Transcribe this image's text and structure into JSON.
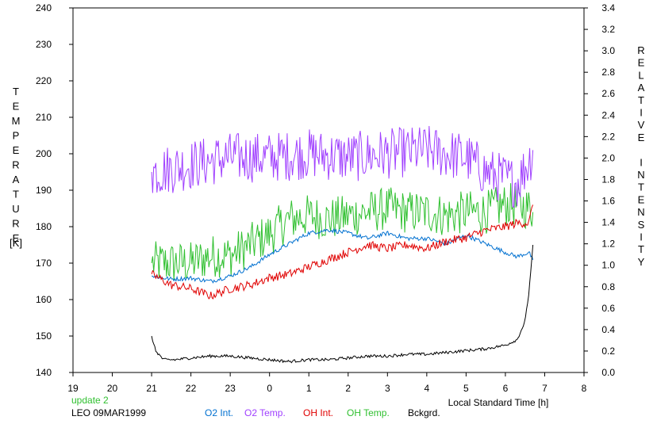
{
  "chart_data": {
    "type": "line",
    "xlabel": "Local Standard Time [h]",
    "ylabel_left": "TEMPERATURE",
    "ylabel_left_unit": "[K]",
    "ylabel_right": "RELATIVE INTENSITY",
    "x_ticks": [
      "19",
      "20",
      "21",
      "22",
      "23",
      "0",
      "1",
      "2",
      "3",
      "4",
      "5",
      "6",
      "7",
      "8"
    ],
    "xlim": [
      19,
      32
    ],
    "ylim_left": [
      140,
      240
    ],
    "ylim_right": [
      0,
      3.4
    ],
    "y_left_ticks": [
      240,
      230,
      220,
      210,
      200,
      190,
      180,
      170,
      160,
      150,
      140
    ],
    "y_right_ticks": [
      "3.4",
      "3.2",
      "3.0",
      "2.8",
      "2.6",
      "2.4",
      "2.2",
      "2.0",
      "1.8",
      "1.6",
      "1.4",
      "1.2",
      "1.0",
      "0.8",
      "0.6",
      "0.4",
      "0.2",
      "0.0"
    ],
    "grid": false,
    "series": [
      {
        "name": "O2 Int.",
        "color": "#0070d0",
        "axis": "right",
        "noise": 0.02,
        "x": [
          21.0,
          21.5,
          22.0,
          22.5,
          23.0,
          23.5,
          24.0,
          24.5,
          25.0,
          25.5,
          26.0,
          26.5,
          27.0,
          27.5,
          28.0,
          28.5,
          29.0,
          29.5,
          30.0,
          30.3,
          30.6,
          30.7
        ],
        "y": [
          0.9,
          0.87,
          0.88,
          0.85,
          0.9,
          0.98,
          1.1,
          1.2,
          1.3,
          1.33,
          1.3,
          1.25,
          1.3,
          1.25,
          1.25,
          1.2,
          1.28,
          1.2,
          1.12,
          1.08,
          1.12,
          1.05
        ]
      },
      {
        "name": "O2 Temp.",
        "color": "#a040ff",
        "axis": "left",
        "noise": 7,
        "x": [
          21.0,
          22.0,
          23.0,
          24.0,
          25.0,
          26.0,
          27.0,
          28.0,
          29.0,
          29.5,
          30.0,
          30.3,
          30.6,
          30.7
        ],
        "y": [
          195,
          197,
          199,
          199,
          200,
          199,
          200,
          201,
          199,
          195,
          193,
          192,
          198,
          201
        ]
      },
      {
        "name": "OH Int.",
        "color": "#e00000",
        "axis": "left",
        "noise": 1.2,
        "x": [
          21.0,
          21.5,
          22.0,
          22.5,
          23.0,
          23.5,
          24.0,
          24.5,
          25.0,
          25.5,
          26.0,
          26.5,
          27.0,
          27.5,
          28.0,
          28.5,
          29.0,
          29.5,
          30.0,
          30.3,
          30.6,
          30.7
        ],
        "y": [
          167,
          164,
          163,
          161,
          163,
          164,
          166,
          167,
          169,
          171,
          173,
          175,
          174,
          175,
          174,
          176,
          177,
          179,
          180,
          181,
          181,
          186
        ]
      },
      {
        "name": "OH Temp.",
        "color": "#30c030",
        "axis": "left",
        "noise": 6,
        "x": [
          21.0,
          21.5,
          22.0,
          22.5,
          23.0,
          23.5,
          24.0,
          24.5,
          25.0,
          25.5,
          26.0,
          26.5,
          27.0,
          27.5,
          28.0,
          28.5,
          29.0,
          29.5,
          30.0,
          30.3,
          30.6,
          30.7
        ],
        "y": [
          170,
          170,
          170,
          172,
          172,
          175,
          178,
          182,
          183,
          182,
          183,
          184,
          185,
          184,
          184,
          183,
          184,
          184,
          186,
          186,
          185,
          184
        ]
      },
      {
        "name": "Bckgrd.",
        "color": "#000000",
        "axis": "left",
        "noise": 0.4,
        "x": [
          21.0,
          21.1,
          21.3,
          21.6,
          22.0,
          22.5,
          23.0,
          23.5,
          24.0,
          24.5,
          25.0,
          25.5,
          26.0,
          26.5,
          27.0,
          27.5,
          28.0,
          28.5,
          29.0,
          29.5,
          30.0,
          30.3,
          30.5,
          30.6,
          30.7
        ],
        "y": [
          150.0,
          146.0,
          143.5,
          143.5,
          144.0,
          144.5,
          144.5,
          144.0,
          143.5,
          143.0,
          143.5,
          143.5,
          144.0,
          144.5,
          144.5,
          145.0,
          145.0,
          145.5,
          146.0,
          146.5,
          147.5,
          149.0,
          154.0,
          162.0,
          175.0
        ]
      }
    ]
  },
  "footer": {
    "update": "update 2",
    "station": "LEO 09MAR1999"
  }
}
